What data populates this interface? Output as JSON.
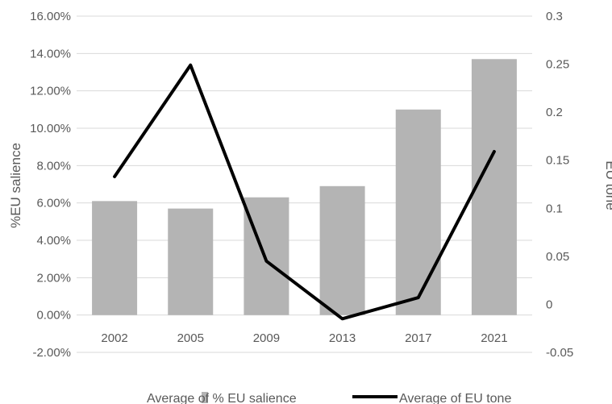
{
  "chart_data": {
    "type": "bar",
    "categories": [
      "2002",
      "2005",
      "2009",
      "2013",
      "2017",
      "2021"
    ],
    "series": [
      {
        "name": "Average of % EU salience",
        "type": "bar",
        "axis": "left",
        "values": [
          0.061,
          0.057,
          0.063,
          0.069,
          0.11,
          0.137
        ],
        "color": "#b4b4b4"
      },
      {
        "name": "Average of EU tone",
        "type": "line",
        "axis": "right",
        "values": [
          0.133,
          0.249,
          0.045,
          -0.015,
          0.007,
          0.159
        ],
        "color": "#000000"
      }
    ],
    "left_axis": {
      "label": "%EU salience",
      "min": -0.02,
      "max": 0.16,
      "step": 0.02,
      "tick_labels": [
        "-2.00%",
        "0.00%",
        "2.00%",
        "4.00%",
        "6.00%",
        "8.00%",
        "10.00%",
        "12.00%",
        "14.00%",
        "16.00%"
      ]
    },
    "right_axis": {
      "label": "EU tone",
      "min": -0.05,
      "max": 0.3,
      "step": 0.05,
      "tick_labels": [
        "-0.05",
        "0",
        "0.05",
        "0.1",
        "0.15",
        "0.2",
        "0.25",
        "0.3"
      ]
    },
    "grid": true,
    "legend_position": "bottom",
    "colors": {
      "grid": "#d9d9d9",
      "text": "#595959"
    }
  }
}
